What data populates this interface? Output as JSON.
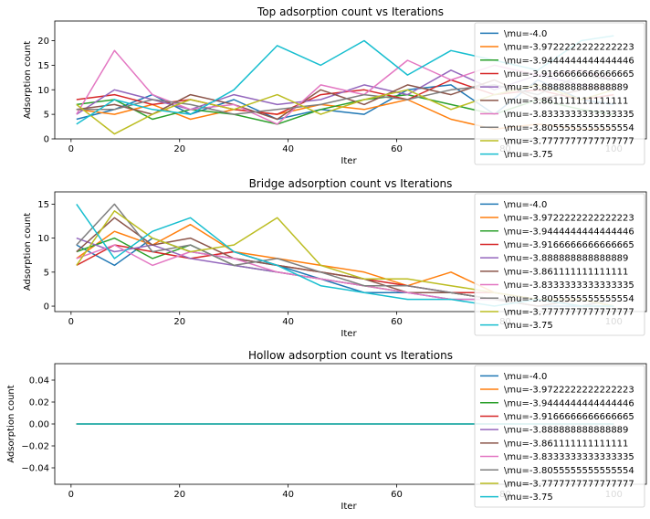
{
  "chart_data": [
    {
      "type": "line",
      "title": "Top adsorption count vs Iterations",
      "xlabel": "Iter",
      "ylabel": "Adsorption count",
      "xlim": [
        -3,
        106
      ],
      "ylim": [
        0,
        24
      ],
      "xticks": [
        0,
        20,
        40,
        60,
        80,
        100
      ],
      "yticks": [
        0,
        5,
        10,
        15,
        20
      ],
      "legend_position": "upper right",
      "series": [
        {
          "name": "\\mu=-4.0",
          "color": "#1f77b4",
          "x": [
            1,
            8,
            15,
            22,
            30,
            38,
            46,
            54,
            62,
            70,
            78,
            86,
            94,
            100
          ],
          "y": [
            4,
            6,
            9,
            5,
            8,
            4,
            6,
            5,
            10,
            11,
            5,
            12,
            8,
            7
          ]
        },
        {
          "name": "\\mu=-3.9722222222222223",
          "color": "#ff7f0e",
          "x": [
            1,
            8,
            15,
            22,
            30,
            38,
            46,
            54,
            62,
            70,
            78,
            86,
            94,
            100
          ],
          "y": [
            6,
            5,
            7,
            4,
            6,
            5,
            7,
            6,
            8,
            4,
            2,
            3,
            2,
            2
          ]
        },
        {
          "name": "\\mu=-3.9444444444444446",
          "color": "#2ca02c",
          "x": [
            1,
            8,
            15,
            22,
            30,
            38,
            46,
            54,
            62,
            70,
            78,
            86,
            94,
            100
          ],
          "y": [
            7,
            8,
            4,
            6,
            5,
            3,
            6,
            8,
            9,
            7,
            5,
            8,
            6,
            5
          ]
        },
        {
          "name": "\\mu=-3.9166666666666665",
          "color": "#d62728",
          "x": [
            1,
            8,
            15,
            22,
            30,
            38,
            46,
            54,
            62,
            70,
            78,
            86,
            94,
            100
          ],
          "y": [
            8,
            9,
            7,
            8,
            6,
            5,
            9,
            10,
            8,
            12,
            9,
            10,
            8,
            9
          ]
        },
        {
          "name": "\\mu=-3.888888888888889",
          "color": "#9467bd",
          "x": [
            1,
            8,
            15,
            22,
            30,
            38,
            46,
            54,
            62,
            70,
            78,
            86,
            94,
            100
          ],
          "y": [
            5,
            10,
            8,
            6,
            9,
            7,
            8,
            11,
            9,
            14,
            10,
            13,
            11,
            10
          ]
        },
        {
          "name": "\\mu=-3.861111111111111",
          "color": "#8c564b",
          "x": [
            1,
            8,
            15,
            22,
            30,
            38,
            46,
            54,
            62,
            70,
            78,
            86,
            94,
            100
          ],
          "y": [
            6,
            7,
            5,
            9,
            7,
            4,
            10,
            7,
            11,
            9,
            12,
            8,
            10,
            11
          ]
        },
        {
          "name": "\\mu=-3.8333333333333335",
          "color": "#e377c2",
          "x": [
            1,
            8,
            15,
            22,
            30,
            38,
            46,
            54,
            62,
            70,
            78,
            86,
            94,
            100
          ],
          "y": [
            5,
            18,
            9,
            6,
            7,
            3,
            11,
            9,
            16,
            12,
            15,
            13,
            14,
            12
          ]
        },
        {
          "name": "\\mu=-3.8055555555555554",
          "color": "#7f7f7f",
          "x": [
            1,
            8,
            15,
            22,
            30,
            38,
            46,
            54,
            62,
            70,
            78,
            86,
            94,
            100
          ],
          "y": [
            6,
            6,
            8,
            7,
            5,
            6,
            7,
            9,
            8,
            10,
            11,
            9,
            13,
            12
          ]
        },
        {
          "name": "\\mu=-3.7777777777777777",
          "color": "#bcbd22",
          "x": [
            1,
            8,
            15,
            22,
            30,
            38,
            46,
            54,
            62,
            70,
            78,
            86,
            94,
            100
          ],
          "y": [
            7,
            1,
            5,
            8,
            6,
            9,
            5,
            8,
            10,
            6,
            9,
            11,
            8,
            10
          ]
        },
        {
          "name": "\\mu=-3.75",
          "color": "#17becf",
          "x": [
            1,
            8,
            15,
            22,
            30,
            38,
            46,
            54,
            62,
            70,
            78,
            86,
            94,
            100
          ],
          "y": [
            3,
            8,
            6,
            5,
            10,
            19,
            15,
            20,
            13,
            18,
            16,
            14,
            20,
            21
          ]
        }
      ]
    },
    {
      "type": "line",
      "title": "Bridge adsorption count vs Iterations",
      "xlabel": "Iter",
      "ylabel": "Adsorption count",
      "xlim": [
        -3,
        106
      ],
      "ylim": [
        -0.8,
        16.8
      ],
      "xticks": [
        0,
        20,
        40,
        60,
        80,
        100
      ],
      "yticks": [
        0,
        5,
        10,
        15
      ],
      "legend_position": "upper right",
      "series": [
        {
          "name": "\\mu=-4.0",
          "color": "#1f77b4",
          "x": [
            1,
            8,
            15,
            22,
            30,
            38,
            46,
            54,
            62,
            70,
            78,
            86,
            94,
            100
          ],
          "y": [
            9,
            6,
            10,
            8,
            7,
            6,
            4,
            2,
            2,
            1,
            1,
            0,
            0,
            1
          ]
        },
        {
          "name": "\\mu=-3.9722222222222223",
          "color": "#ff7f0e",
          "x": [
            1,
            8,
            15,
            22,
            30,
            38,
            46,
            54,
            62,
            70,
            78,
            86,
            94,
            100
          ],
          "y": [
            7,
            11,
            9,
            12,
            8,
            7,
            6,
            5,
            3,
            5,
            2,
            1,
            1,
            0
          ]
        },
        {
          "name": "\\mu=-3.9444444444444446",
          "color": "#2ca02c",
          "x": [
            1,
            8,
            15,
            22,
            30,
            38,
            46,
            54,
            62,
            70,
            78,
            86,
            94,
            100
          ],
          "y": [
            8,
            10,
            7,
            9,
            6,
            5,
            4,
            3,
            2,
            2,
            1,
            1,
            0,
            0
          ]
        },
        {
          "name": "\\mu=-3.9166666666666665",
          "color": "#d62728",
          "x": [
            1,
            8,
            15,
            22,
            30,
            38,
            46,
            54,
            62,
            70,
            78,
            86,
            94,
            100
          ],
          "y": [
            6,
            9,
            8,
            7,
            8,
            6,
            5,
            4,
            3,
            2,
            2,
            1,
            1,
            0
          ]
        },
        {
          "name": "\\mu=-3.888888888888889",
          "color": "#9467bd",
          "x": [
            1,
            8,
            15,
            22,
            30,
            38,
            46,
            54,
            62,
            70,
            78,
            86,
            94,
            100
          ],
          "y": [
            10,
            8,
            9,
            7,
            6,
            5,
            4,
            3,
            3,
            2,
            1,
            1,
            0,
            1
          ]
        },
        {
          "name": "\\mu=-3.861111111111111",
          "color": "#8c564b",
          "x": [
            1,
            8,
            15,
            22,
            30,
            38,
            46,
            54,
            62,
            70,
            78,
            86,
            94,
            100
          ],
          "y": [
            8,
            13,
            9,
            10,
            7,
            6,
            5,
            4,
            2,
            2,
            1,
            0,
            1,
            0
          ]
        },
        {
          "name": "\\mu=-3.8333333333333335",
          "color": "#e377c2",
          "x": [
            1,
            8,
            15,
            22,
            30,
            38,
            46,
            54,
            62,
            70,
            78,
            86,
            94,
            100
          ],
          "y": [
            7,
            9,
            6,
            8,
            7,
            5,
            4,
            3,
            2,
            1,
            1,
            1,
            0,
            0
          ]
        },
        {
          "name": "\\mu=-3.8055555555555554",
          "color": "#7f7f7f",
          "x": [
            1,
            8,
            15,
            22,
            30,
            38,
            46,
            54,
            62,
            70,
            78,
            86,
            94,
            100
          ],
          "y": [
            9,
            15,
            8,
            9,
            6,
            7,
            5,
            3,
            3,
            2,
            1,
            1,
            0,
            1
          ]
        },
        {
          "name": "\\mu=-3.7777777777777777",
          "color": "#bcbd22",
          "x": [
            1,
            8,
            15,
            22,
            30,
            38,
            46,
            54,
            62,
            70,
            78,
            86,
            94,
            100
          ],
          "y": [
            6,
            14,
            10,
            8,
            9,
            13,
            6,
            4,
            4,
            3,
            2,
            1,
            1,
            0
          ]
        },
        {
          "name": "\\mu=-3.75",
          "color": "#17becf",
          "x": [
            1,
            8,
            15,
            22,
            30,
            38,
            46,
            54,
            62,
            70,
            78,
            86,
            94,
            100
          ],
          "y": [
            15,
            7,
            11,
            13,
            8,
            6,
            3,
            2,
            1,
            1,
            0,
            1,
            0,
            0
          ]
        }
      ]
    },
    {
      "type": "line",
      "title": "Hollow adsorption count vs Iterations",
      "xlabel": "Iter",
      "ylabel": "Adsorption count",
      "xlim": [
        -3,
        106
      ],
      "ylim": [
        -0.055,
        0.055
      ],
      "xticks": [
        0,
        20,
        40,
        60,
        80,
        100
      ],
      "yticks": [
        -0.04,
        -0.02,
        0.0,
        0.02,
        0.04
      ],
      "ytick_labels": [
        "−0.04",
        "−0.02",
        "0.00",
        "0.02",
        "0.04"
      ],
      "legend_position": "upper right",
      "series": [
        {
          "name": "\\mu=-4.0",
          "color": "#1f77b4",
          "x": [
            1,
            100
          ],
          "y": [
            0,
            0
          ]
        },
        {
          "name": "\\mu=-3.9722222222222223",
          "color": "#ff7f0e",
          "x": [
            1,
            100
          ],
          "y": [
            0,
            0
          ]
        },
        {
          "name": "\\mu=-3.9444444444444446",
          "color": "#2ca02c",
          "x": [
            1,
            100
          ],
          "y": [
            0,
            0
          ]
        },
        {
          "name": "\\mu=-3.9166666666666665",
          "color": "#d62728",
          "x": [
            1,
            100
          ],
          "y": [
            0,
            0
          ]
        },
        {
          "name": "\\mu=-3.888888888888889",
          "color": "#9467bd",
          "x": [
            1,
            100
          ],
          "y": [
            0,
            0
          ]
        },
        {
          "name": "\\mu=-3.861111111111111",
          "color": "#8c564b",
          "x": [
            1,
            100
          ],
          "y": [
            0,
            0
          ]
        },
        {
          "name": "\\mu=-3.8333333333333335",
          "color": "#e377c2",
          "x": [
            1,
            100
          ],
          "y": [
            0,
            0
          ]
        },
        {
          "name": "\\mu=-3.8055555555555554",
          "color": "#7f7f7f",
          "x": [
            1,
            100
          ],
          "y": [
            0,
            0
          ]
        },
        {
          "name": "\\mu=-3.7777777777777777",
          "color": "#bcbd22",
          "x": [
            1,
            100
          ],
          "y": [
            0,
            0
          ]
        },
        {
          "name": "\\mu=-3.75",
          "color": "#17becf",
          "x": [
            1,
            100
          ],
          "y": [
            0,
            0
          ]
        }
      ]
    }
  ]
}
